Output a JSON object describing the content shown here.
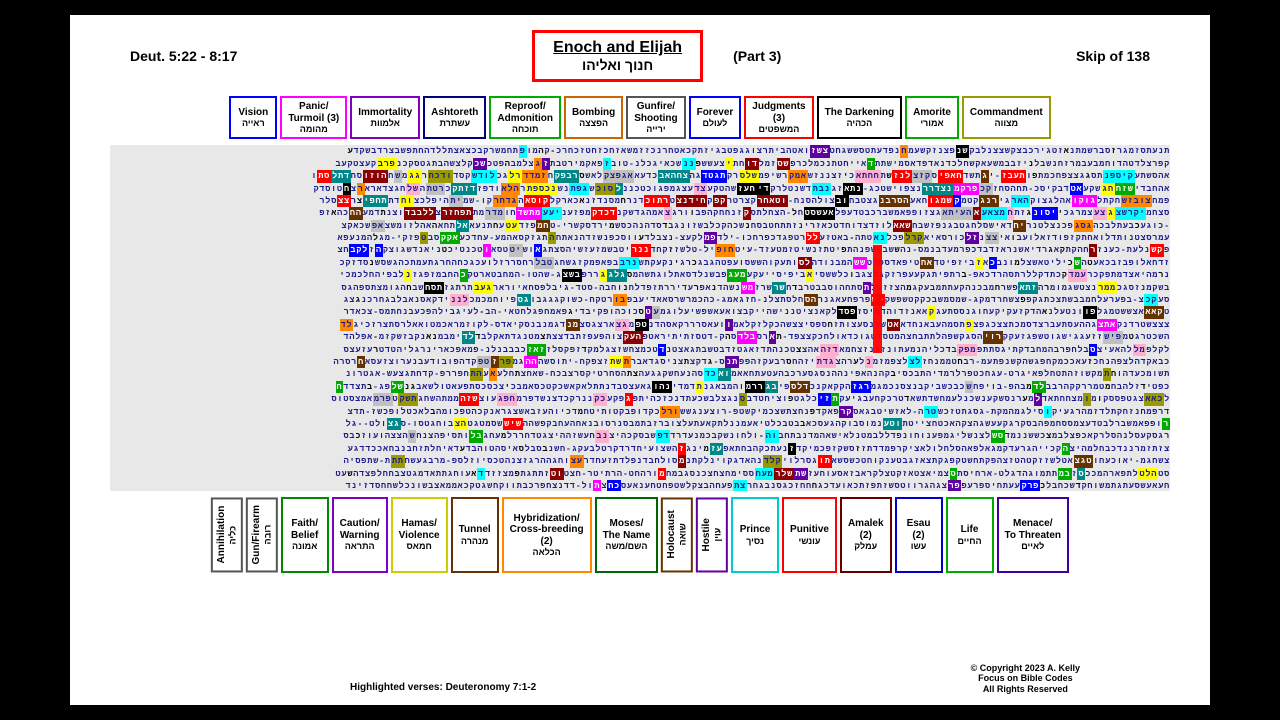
{
  "header": {
    "reference": "Deut. 5:22 - 8:17",
    "title_en": "Enoch and Elijah",
    "title_he": "חנוך ואליהו",
    "part": "(Part 3)",
    "skip": "Skip of 138"
  },
  "legend_top": [
    {
      "en": "Vision",
      "he": "ראייה",
      "color": "#0000ff"
    },
    {
      "en": "Panic/\nTurmoil (3)",
      "he": "מהומה",
      "color": "#ff00ff"
    },
    {
      "en": "Immortality",
      "he": "אלמוות",
      "color": "#8000c0"
    },
    {
      "en": "Ashtoreth",
      "he": "עשתרת",
      "color": "#000080"
    },
    {
      "en": "Reproof/\nAdmonition",
      "he": "תוכחה",
      "color": "#00aa00"
    },
    {
      "en": "Bombing",
      "he": "הפצצה",
      "color": "#cc6600"
    },
    {
      "en": "Gunfire/\nShooting",
      "he": "ירייה",
      "color": "#555555"
    },
    {
      "en": "Forever",
      "he": "לעולם",
      "color": "#0000ff"
    },
    {
      "en": "Judgments\n(3)",
      "he": "המשפטים",
      "color": "#ff0000"
    },
    {
      "en": "The Darkening",
      "he": "הכהיה",
      "color": "#000000"
    },
    {
      "en": "Amorite",
      "he": "אמורי",
      "color": "#00aa00"
    },
    {
      "en": "Commandment",
      "he": "מצווה",
      "color": "#999900"
    }
  ],
  "legend_bottom": [
    {
      "en": "Annihilation",
      "he": "כליה",
      "color": "#555555",
      "vertical": true
    },
    {
      "en": "Gun/Firearm",
      "he": "רובה",
      "color": "#555555",
      "vertical": true
    },
    {
      "en": "Faith/\nBelief",
      "he": "אמונה",
      "color": "#008800"
    },
    {
      "en": "Caution/\nWarning",
      "he": "התראה",
      "color": "#8000c0"
    },
    {
      "en": "Hamas/\nViolence",
      "he": "חמאס",
      "color": "#cccc00"
    },
    {
      "en": "Tunnel",
      "he": "מנהרה",
      "color": "#663300"
    },
    {
      "en": "Hybridization/\nCross-breeding\n(2)",
      "he": "הכלאה",
      "color": "#ff8800"
    },
    {
      "en": "Moses/\nThe Name",
      "he": "השם/משה",
      "color": "#006600"
    },
    {
      "en": "Holocaust",
      "he": "שואה",
      "color": "#663300",
      "vertical": true
    },
    {
      "en": "Hostile",
      "he": "עוין",
      "color": "#6000a0",
      "vertical": true
    },
    {
      "en": "Prince",
      "he": "נסיך",
      "color": "#00cccc"
    },
    {
      "en": "Punitive",
      "he": "עונשי",
      "color": "#ff0000"
    },
    {
      "en": "Amalek\n(2)",
      "he": "עמלק",
      "color": "#660000"
    },
    {
      "en": "Esau\n(2)",
      "he": "עשו",
      "color": "#0000cc"
    },
    {
      "en": "Life",
      "he": "החיים",
      "color": "#00aa00"
    },
    {
      "en": "Menace/\nTo Threaten",
      "he": "לאיים",
      "color": "#4000a0"
    }
  ],
  "footer": {
    "highlighted": "Highlighted verses: Deuteronomy 7:1-2",
    "copyright1": "© Copyright 2023  A. Kelly",
    "copyright2": "Focus on Bible Codes",
    "copyright3": "All Rights Reserved"
  },
  "style": {
    "page_bg": "#ffffff",
    "outer_bg": "#000000",
    "title_border": "#ff0000",
    "matrix_bg": "#e8e8e8",
    "matrix_text": "#1a1a8a",
    "highlight_colors": {
      "gray": "#c0c0c0",
      "yellow": "#ffff00",
      "magenta": "#ff00ff",
      "cyan": "#00ffff",
      "green": "#00aa00",
      "red": "#ff0000",
      "blue": "#0000ff",
      "pink": "#ffb0d0",
      "orange": "#ff8800",
      "black": "#000000",
      "brown": "#663300",
      "purple": "#6000a0",
      "olive": "#999900",
      "teal": "#008888",
      "darkred": "#8b0000"
    }
  },
  "matrix": {
    "rows": 28,
    "cols": 138,
    "note": "Hebrew letter grid from Deut 5:22-8:17, RTL, with colored highlights marking encoded words per legend. Each row is a contiguous 138-letter slice."
  }
}
